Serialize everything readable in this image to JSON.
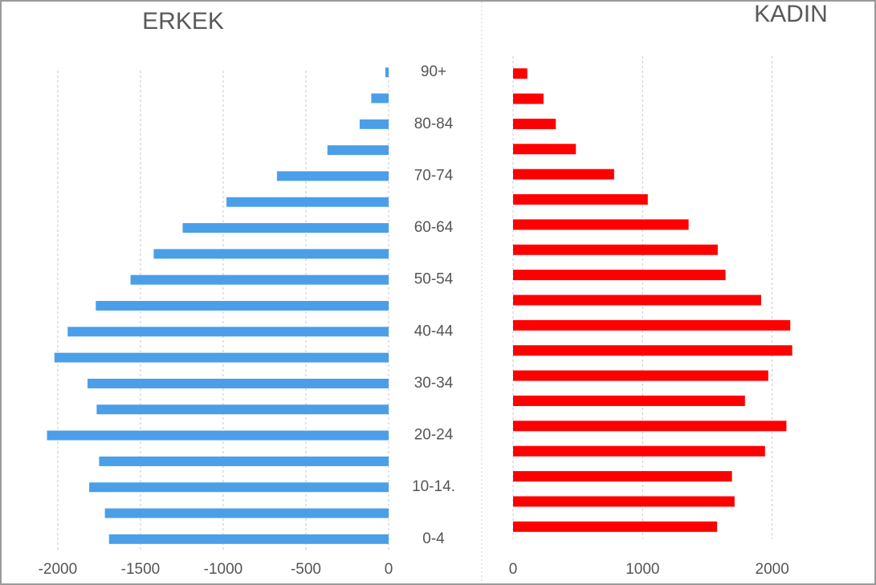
{
  "chart_data": [
    {
      "type": "bar",
      "orientation": "horizontal",
      "title": "ERKEK",
      "color": "#4a9fe8",
      "categories": [
        "0-4",
        null,
        "10-14.",
        null,
        "20-24",
        null,
        "30-34",
        null,
        "40-44",
        null,
        "50-54",
        null,
        "60-64",
        null,
        "70-74",
        null,
        "80-84",
        null,
        "90+"
      ],
      "values": [
        -1690,
        -1715,
        -1810,
        -1750,
        -2065,
        -1765,
        -1820,
        -2020,
        -1940,
        -1770,
        -1560,
        -1420,
        -1245,
        -980,
        -675,
        -370,
        -175,
        -105,
        -20
      ],
      "xlim": [
        -2150,
        0
      ],
      "xticks": [
        -2000,
        -1500,
        -1000,
        -500,
        0
      ],
      "grid": true
    },
    {
      "type": "bar",
      "orientation": "horizontal",
      "title": "KADIN",
      "color": "#ff0000",
      "values": [
        1575,
        1710,
        1690,
        1945,
        2110,
        1790,
        1970,
        2155,
        2140,
        1915,
        1640,
        1580,
        1355,
        1040,
        780,
        485,
        330,
        235,
        110
      ],
      "xlim": [
        0,
        2250
      ],
      "xticks": [
        0,
        1000,
        2000
      ],
      "grid": true
    }
  ]
}
